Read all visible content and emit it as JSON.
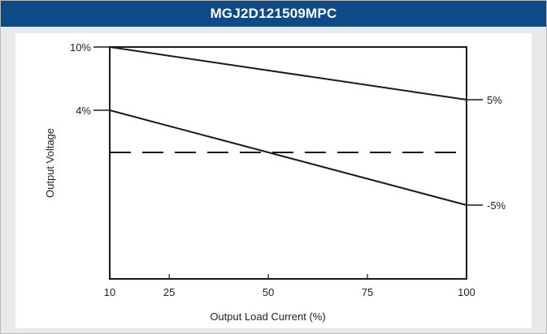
{
  "header": {
    "title": "MGJ2D121509MPC"
  },
  "chart_data": {
    "type": "line",
    "title": "MGJ2D121509MPC",
    "xlabel": "Output Load Current (%)",
    "ylabel": "Output Voltage",
    "x_ticks": [
      10,
      25,
      50,
      75,
      100
    ],
    "x_tick_labels": [
      "10",
      "25",
      "50",
      "75",
      "100"
    ],
    "xlim": [
      10,
      100
    ],
    "y_unit": "%",
    "ylim": [
      -12,
      10
    ],
    "y_ticks_left": [
      {
        "value": 10,
        "label": "10%"
      },
      {
        "value": 4,
        "label": "4%"
      }
    ],
    "y_ticks_right": [
      {
        "value": 5,
        "label": "5%"
      },
      {
        "value": -5,
        "label": "-5%"
      }
    ],
    "series": [
      {
        "x": [
          10,
          100
        ],
        "values": [
          10,
          5
        ],
        "style": "solid",
        "color": "#1a1a1a"
      },
      {
        "x": [
          10,
          100
        ],
        "values": [
          4,
          -5
        ],
        "style": "solid",
        "color": "#1a1a1a"
      },
      {
        "x": [
          10,
          100
        ],
        "values": [
          0,
          0
        ],
        "style": "dashed",
        "color": "#1a1a1a"
      }
    ],
    "grid": false,
    "legend": "none"
  }
}
